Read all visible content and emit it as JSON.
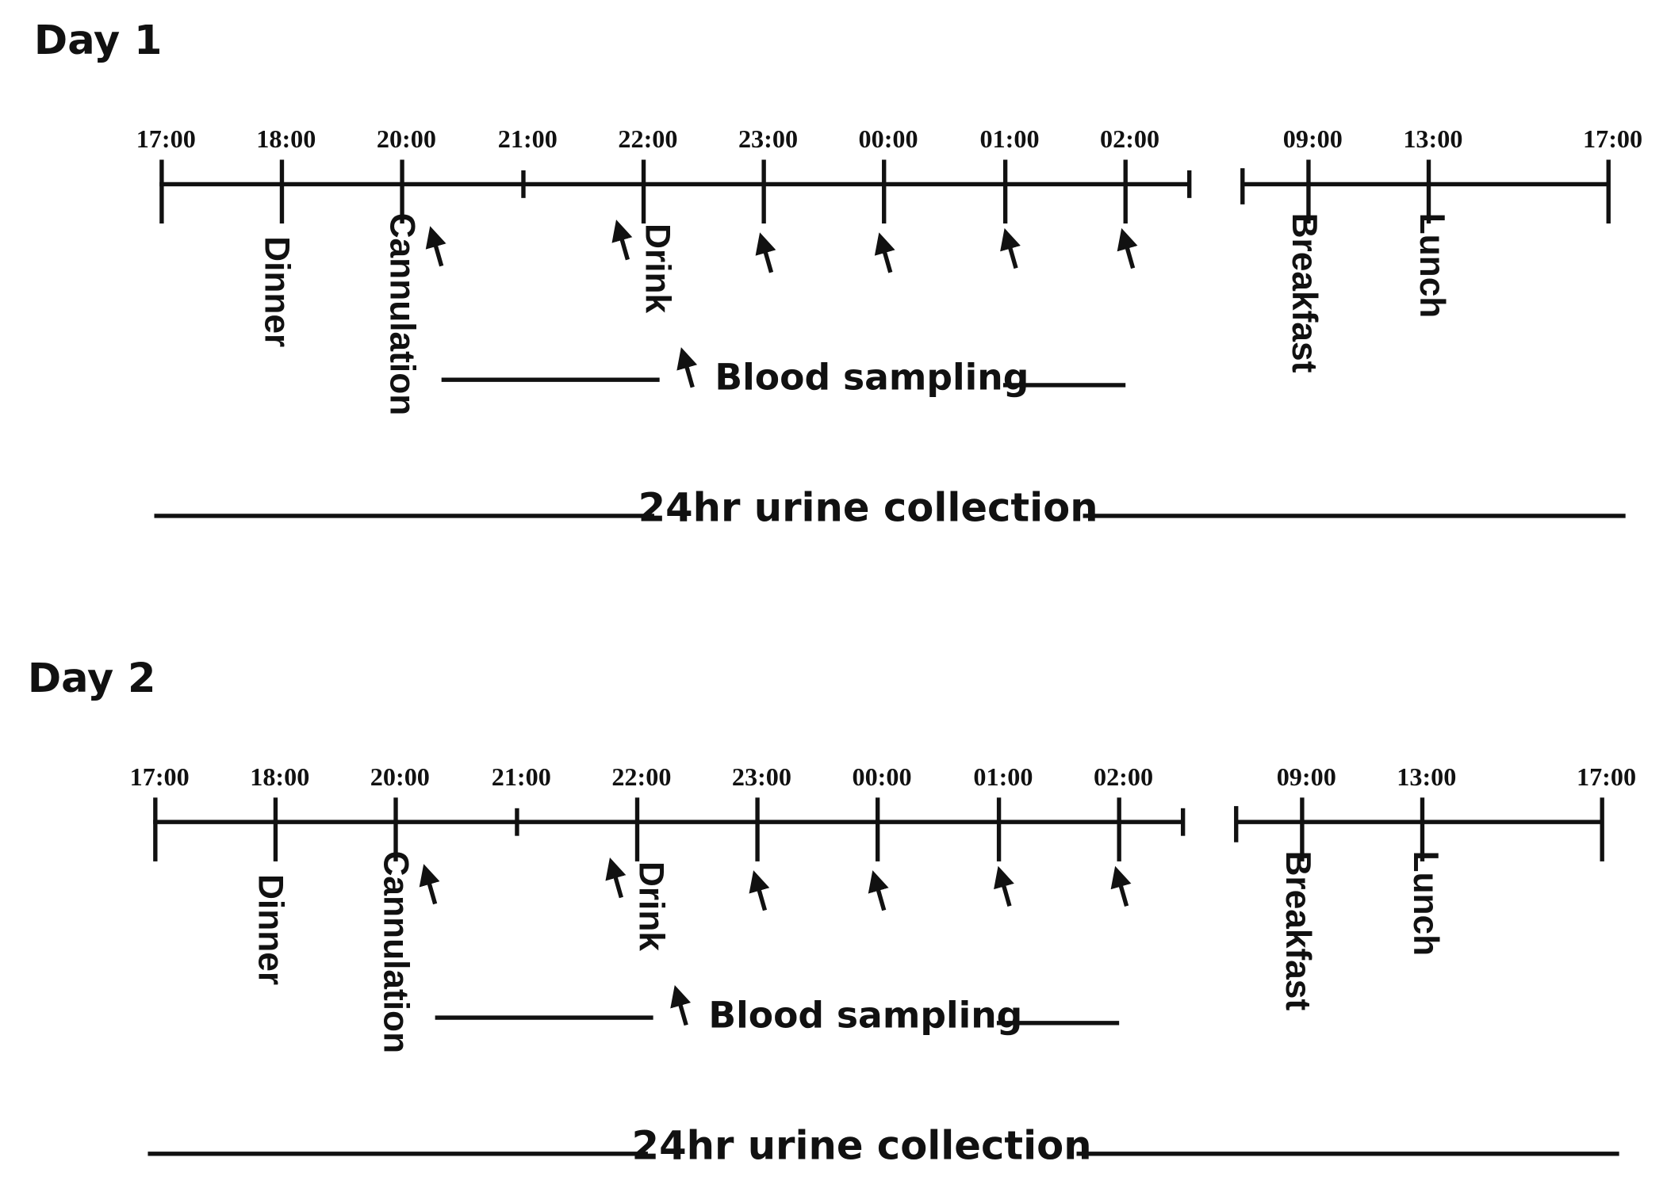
{
  "panels": [
    {
      "title": "Day 1",
      "ticks": [
        "17:00",
        "18:00",
        "20:00",
        "21:00",
        "22:00",
        "23:00",
        "00:00",
        "01:00",
        "02:00",
        "09:00",
        "13:00",
        "17:00"
      ],
      "events": [
        "Dinner",
        "Cannulation",
        "Drink",
        "Breakfast",
        "Lunch"
      ],
      "blood_label": "Blood sampling",
      "urine_label": "24hr urine collection"
    },
    {
      "title": "Day 2",
      "ticks": [
        "17:00",
        "18:00",
        "20:00",
        "21:00",
        "22:00",
        "23:00",
        "00:00",
        "01:00",
        "02:00",
        "09:00",
        "13:00",
        "17:00"
      ],
      "events": [
        "Dinner",
        "Cannulation",
        "Drink",
        "Breakfast",
        "Lunch"
      ],
      "blood_label": "Blood sampling",
      "urine_label": "24hr urine collection"
    }
  ]
}
